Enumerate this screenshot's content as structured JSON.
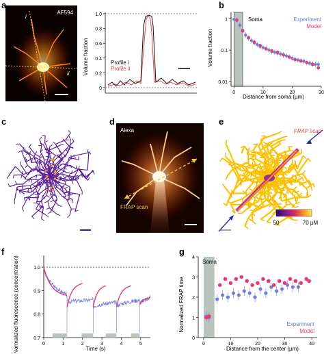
{
  "panels": {
    "a": {
      "letter": "a",
      "image_label": "AF594",
      "line_i": "i",
      "line_ii": "ii",
      "plot": {
        "ylabel": "Volume fraction",
        "yticks": [
          "0",
          "0.2",
          "0.4",
          "0.6",
          "0.8",
          "1.0"
        ],
        "legend": [
          {
            "name": "Profile i",
            "color": "#111111"
          },
          {
            "name": "Profile ii",
            "color": "#e8453c"
          }
        ]
      }
    },
    "b": {
      "letter": "b",
      "soma_label": "Soma",
      "legend_experiment": "Experiment",
      "legend_model": "Model",
      "xlabel": "Distance from soma (µm)",
      "ylabel": "Volume fraction",
      "xticks": [
        "0",
        "10",
        "20",
        "30"
      ],
      "yticks": [
        "1",
        "0.1",
        "0.01"
      ]
    },
    "c": {
      "letter": "c"
    },
    "d": {
      "letter": "d",
      "image_label": "Alexa",
      "scan_label": "FRAP scan"
    },
    "e": {
      "letter": "e",
      "scan_label": "FRAP scan",
      "colorbar_min": "50",
      "colorbar_max": "70 µM"
    },
    "f": {
      "letter": "f",
      "xlabel": "Time (s)",
      "ylabel": "Normalized fluorescence (concentration)",
      "xticks": [
        "0",
        "1",
        "2",
        "3",
        "4",
        "5"
      ],
      "yticks": [
        "0.7",
        "0.8",
        "0.9",
        "1.0"
      ]
    },
    "g": {
      "letter": "g",
      "soma_label": "Soma",
      "legend_experiment": "Experiment",
      "legend_model": "Model",
      "xlabel": "Distance from the center (µm)",
      "ylabel": "Normalized FRAP time",
      "xticks": [
        "0",
        "10",
        "20",
        "30",
        "40"
      ],
      "yticks": [
        "0",
        "1",
        "2",
        "3",
        "4"
      ]
    }
  },
  "colors": {
    "experiment": "#6f7de0",
    "model": "#e83c6e",
    "soma_band": "#b9c4bd",
    "tree_purple": "#5a1f9e",
    "tree_yellow": "#ffc400"
  },
  "chart_data": [
    {
      "id": "b",
      "type": "scatter",
      "xlabel": "Distance from soma (µm)",
      "ylabel": "Volume fraction",
      "xlim": [
        -1,
        30
      ],
      "ylim": [
        0.007,
        1.6
      ],
      "yscale": "log",
      "series": [
        {
          "name": "Experiment",
          "x": [
            0,
            1,
            2,
            3,
            4,
            5,
            6,
            7,
            8,
            9,
            10,
            11,
            12,
            13,
            14,
            15,
            16,
            17,
            18,
            19,
            20,
            21,
            22,
            23,
            24,
            25,
            26,
            27,
            28,
            29
          ],
          "y": [
            0.95,
            0.9,
            0.62,
            0.4,
            0.3,
            0.24,
            0.2,
            0.17,
            0.15,
            0.13,
            0.12,
            0.11,
            0.1,
            0.09,
            0.085,
            0.08,
            0.075,
            0.07,
            0.065,
            0.06,
            0.055,
            0.05,
            0.048,
            0.046,
            0.044,
            0.04,
            0.038,
            0.036,
            0.035,
            0.035
          ]
        },
        {
          "name": "Model",
          "x": [
            1,
            3,
            5,
            7,
            9,
            11,
            13,
            15,
            17,
            19,
            21,
            23,
            25,
            27,
            29
          ],
          "y": [
            0.9,
            0.42,
            0.25,
            0.18,
            0.14,
            0.11,
            0.095,
            0.085,
            0.07,
            0.06,
            0.05,
            0.045,
            0.04,
            0.035,
            0.027
          ]
        }
      ]
    },
    {
      "id": "f",
      "type": "line",
      "xlabel": "Time (s)",
      "ylabel": "Normalized fluorescence (concentration)",
      "xlim": [
        0,
        5.5
      ],
      "ylim": [
        0.7,
        1.05
      ],
      "bleach_intervals": [
        [
          0.45,
          1.2
        ],
        [
          1.95,
          2.55
        ],
        [
          3.2,
          3.75
        ],
        [
          4.5,
          4.95
        ]
      ],
      "series": [
        {
          "name": "Experiment",
          "segments": [
            {
              "t0": 0.0,
              "t1": 1.2,
              "start": 1.0,
              "end": 0.88
            },
            {
              "t0": 1.2,
              "t1": 2.55,
              "start": 0.85,
              "end": 0.86
            },
            {
              "t0": 2.55,
              "t1": 3.75,
              "start": 0.83,
              "end": 0.85
            },
            {
              "t0": 3.75,
              "t1": 4.95,
              "start": 0.83,
              "end": 0.86
            },
            {
              "t0": 4.95,
              "t1": 5.5,
              "start": 0.84,
              "end": 0.87
            }
          ]
        },
        {
          "name": "Model",
          "segments": [
            {
              "t0": 0.0,
              "t1": 1.2,
              "start": 1.0,
              "end": 0.88
            },
            {
              "t0": 1.2,
              "t1": 2.0,
              "start": 0.83,
              "end": 0.93
            },
            {
              "t0": 2.55,
              "t1": 3.2,
              "start": 0.83,
              "end": 0.92
            },
            {
              "t0": 3.75,
              "t1": 4.5,
              "start": 0.83,
              "end": 0.92
            },
            {
              "t0": 4.95,
              "t1": 5.5,
              "start": 0.84,
              "end": 0.87
            }
          ]
        }
      ]
    },
    {
      "id": "g",
      "type": "scatter",
      "xlabel": "Distance from the center (µm)",
      "ylabel": "Normalized FRAP time",
      "xlim": [
        -2,
        42
      ],
      "ylim": [
        0,
        4
      ],
      "soma_band": [
        0,
        4
      ],
      "series": [
        {
          "name": "Experiment",
          "x": [
            1,
            2,
            5,
            7,
            9,
            11,
            13,
            15,
            17,
            19,
            21,
            23,
            25,
            27,
            29,
            31,
            33,
            35
          ],
          "y": [
            1.05,
            1.0,
            1.9,
            2.1,
            2.0,
            2.2,
            2.1,
            2.3,
            2.2,
            2.0,
            2.4,
            2.2,
            2.5,
            2.3,
            2.4,
            2.6,
            2.5,
            2.5
          ]
        },
        {
          "name": "Model",
          "x": [
            1,
            2,
            6,
            8,
            10,
            12,
            14,
            16,
            18,
            20,
            22,
            24,
            26,
            28,
            30,
            32,
            34,
            36,
            38,
            39
          ],
          "y": [
            1.0,
            1.05,
            2.6,
            2.9,
            2.7,
            2.9,
            3.0,
            2.8,
            2.6,
            2.7,
            2.9,
            2.8,
            2.6,
            2.8,
            2.7,
            2.9,
            2.8,
            2.7,
            2.9,
            2.8
          ]
        }
      ]
    }
  ]
}
